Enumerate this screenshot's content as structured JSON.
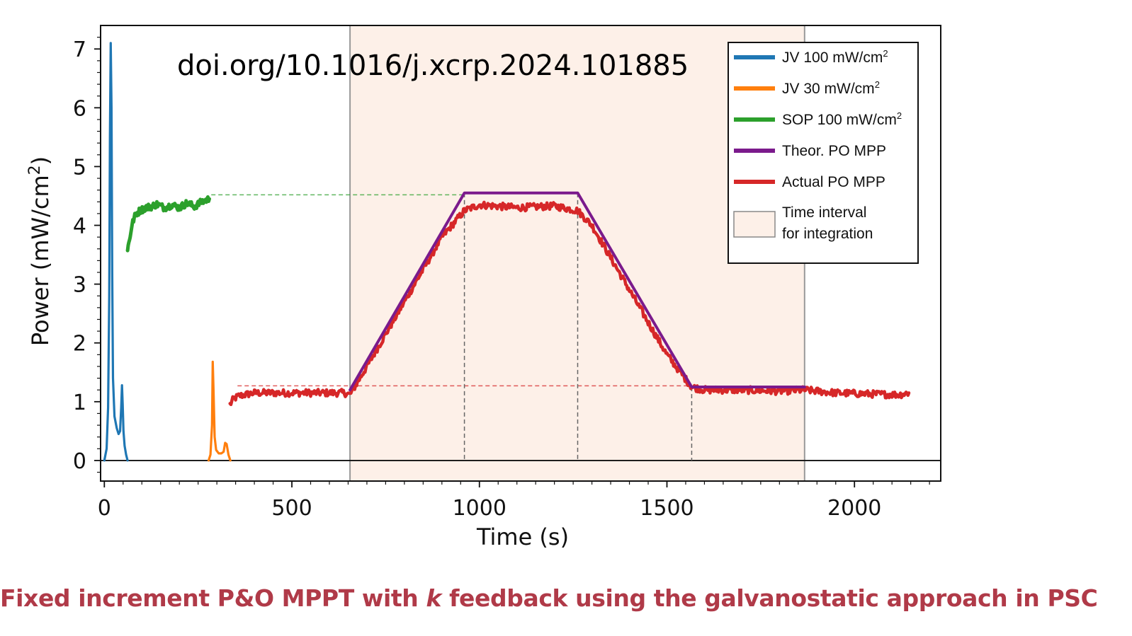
{
  "chart_data": {
    "type": "line",
    "xlabel": "Time (s)",
    "ylabel": "Power (mW/cm2)",
    "xlim": [
      -10,
      2230
    ],
    "ylim": [
      -0.35,
      7.4
    ],
    "xticks": [
      0,
      500,
      1000,
      1500,
      2000
    ],
    "yticks": [
      0,
      1,
      2,
      3,
      4,
      5,
      6,
      7
    ],
    "annotation": "doi.org/10.1016/j.xcrp.2024.101885",
    "integration_interval": {
      "x_start": 655,
      "x_end": 1867,
      "label_line1": "Time interval",
      "label_line2": "for integration"
    },
    "legend_position": "top-right",
    "series": [
      {
        "name": "JV 100 mW/cm",
        "sup": "2",
        "color": "#1f77b4",
        "x": [
          0,
          6,
          10,
          13,
          15,
          17,
          19,
          21,
          23,
          27,
          33,
          38,
          42,
          45,
          47,
          49,
          51,
          54,
          58,
          62
        ],
        "y": [
          0,
          0.2,
          0.9,
          2.8,
          5.5,
          7.1,
          6.0,
          3.2,
          1.4,
          0.75,
          0.55,
          0.45,
          0.5,
          0.9,
          1.28,
          0.95,
          0.5,
          0.25,
          0.1,
          0
        ]
      },
      {
        "name": "JV   30 mW/cm",
        "sup": "2",
        "color": "#ff7f0e",
        "x": [
          278,
          283,
          287,
          289,
          291,
          294,
          298,
          305,
          312,
          318,
          322,
          326,
          331,
          336
        ],
        "y": [
          0,
          0.1,
          0.6,
          1.68,
          1.2,
          0.4,
          0.18,
          0.12,
          0.12,
          0.15,
          0.3,
          0.28,
          0.1,
          0
        ]
      },
      {
        "name": "SOP 100 mW/cm",
        "sup": "2",
        "color": "#2ca02c",
        "x": [
          62,
          67,
          72,
          78,
          85,
          95,
          110,
          125,
          140,
          160,
          180,
          200,
          220,
          240,
          260,
          280
        ],
        "y": [
          3.6,
          3.75,
          3.95,
          4.1,
          4.2,
          4.25,
          4.3,
          4.32,
          4.36,
          4.3,
          4.35,
          4.3,
          4.38,
          4.32,
          4.4,
          4.45
        ]
      },
      {
        "name": "Theor. PO MPP",
        "color": "#7b1a8c",
        "x": [
          655,
          960,
          1262,
          1566,
          1867
        ],
        "y": [
          1.2,
          4.55,
          4.55,
          1.25,
          1.25
        ]
      },
      {
        "name": "Actual PO MPP",
        "color": "#d62728",
        "x": [
          335,
          345,
          360,
          400,
          500,
          600,
          640,
          655,
          700,
          800,
          900,
          960,
          1000,
          1100,
          1200,
          1262,
          1300,
          1400,
          1500,
          1566,
          1600,
          1700,
          1800,
          1867,
          1950,
          2050,
          2120,
          2145
        ],
        "y": [
          0.95,
          1.05,
          1.1,
          1.15,
          1.15,
          1.15,
          1.15,
          1.12,
          1.6,
          2.7,
          3.8,
          4.25,
          4.35,
          4.3,
          4.33,
          4.25,
          4.0,
          2.9,
          1.8,
          1.25,
          1.2,
          1.2,
          1.18,
          1.2,
          1.15,
          1.13,
          1.12,
          1.15
        ]
      }
    ],
    "reference_lines": [
      {
        "color": "#2ca02c",
        "y": 4.52,
        "x_start": 285,
        "x_end": 960
      },
      {
        "color": "#d62728",
        "y": 1.27,
        "x_start": 355,
        "x_end": 1566
      }
    ],
    "vertical_markers": [
      960,
      1262,
      1566
    ]
  },
  "caption": {
    "before": "Fixed increment P&O MPPT with ",
    "italic": "k",
    "after": " feedback using the galvanostatic approach in PSC"
  }
}
